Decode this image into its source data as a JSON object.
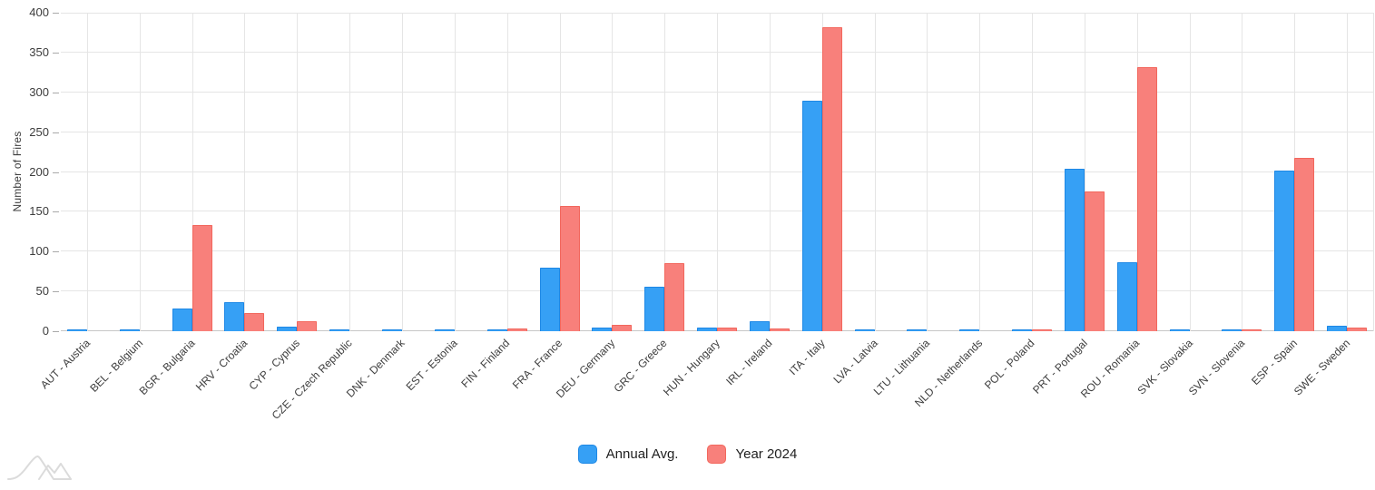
{
  "chart_data": {
    "type": "bar",
    "title": "",
    "ylabel": "Number of Fires",
    "xlabel": "",
    "ylim": [
      0,
      400
    ],
    "yticks": [
      0,
      50,
      100,
      150,
      200,
      250,
      300,
      350,
      400
    ],
    "grid": true,
    "legend_position": "bottom",
    "categories": [
      "AUT - Austria",
      "BEL - Belgium",
      "BGR - Bulgaria",
      "HRV - Croatia",
      "CYP - Cyprus",
      "CZE - Czech Republic",
      "DNK - Denmark",
      "EST - Estonia",
      "FIN - Finland",
      "FRA - France",
      "DEU - Germany",
      "GRC - Greece",
      "HUN - Hungary",
      "IRL - Ireland",
      "ITA - Italy",
      "LVA - Latvia",
      "LTU - Lithuania",
      "NLD - Netherlands",
      "POL - Poland",
      "PRT - Portugal",
      "ROU - Romania",
      "SVK - Slovakia",
      "SVN - Slovenia",
      "ESP - Spain",
      "SWE - Sweden"
    ],
    "series": [
      {
        "name": "Annual Avg.",
        "color": "#36A0F5",
        "border_color": "#1E88E5",
        "values": [
          1,
          1,
          29,
          36,
          6,
          1,
          1,
          1,
          1,
          80,
          5,
          56,
          4,
          12,
          290,
          1,
          1,
          1,
          1,
          204,
          87,
          1,
          1,
          202,
          7
        ]
      },
      {
        "name": "Year 2024",
        "color": "#F8807B",
        "border_color": "#F2675D",
        "values": [
          0,
          0,
          133,
          23,
          13,
          0,
          0,
          0,
          3,
          157,
          8,
          85,
          4,
          3,
          382,
          0,
          0,
          0,
          2,
          175,
          332,
          0,
          1,
          218,
          4
        ]
      }
    ]
  },
  "colors": {
    "grid_line": "#E5E5E5",
    "baseline": "#C7C7C7",
    "tick_mark": "#A9A9A9",
    "tick_text": "#3D3D3D",
    "legend_text": "#1F1F1F",
    "watermark": "#DBDBDB"
  },
  "icons": {
    "watermark": "mountains-logo-icon",
    "legend_swatch_annual": "blue-square-icon",
    "legend_swatch_2024": "red-square-icon"
  }
}
